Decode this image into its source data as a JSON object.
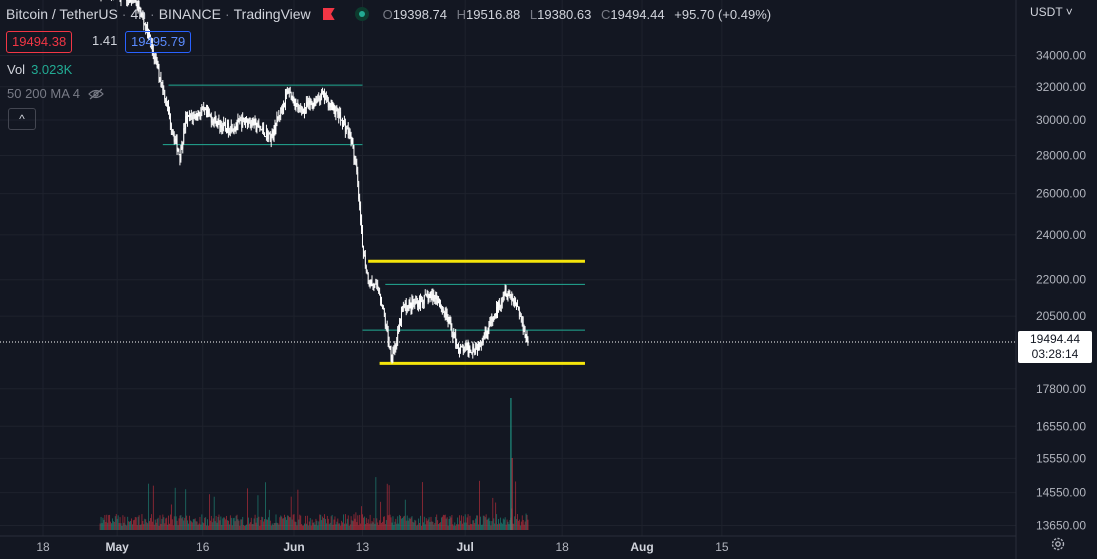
{
  "header": {
    "symbol": "Bitcoin / TetherUS",
    "interval": "4h",
    "exchange": "BINANCE",
    "source": "TradingView",
    "ohlc": {
      "o_label": "O",
      "o": "19398.74",
      "h_label": "H",
      "h": "19516.88",
      "l_label": "L",
      "l": "19380.63",
      "c_label": "C",
      "c": "19494.44",
      "change": "+95.70 (+0.49%)"
    },
    "bid": "19494.38",
    "spread": "1.41",
    "ask": "19495.79",
    "vol_label": "Vol",
    "vol_value": "3.023K",
    "ma_label": "50 200 MA 4",
    "collapse_symbol": "^"
  },
  "axis": {
    "currency": "USDT ˅",
    "last_price": "19494.44",
    "countdown": "03:28:14"
  },
  "colors": {
    "background": "#131722",
    "up": "#22ab94",
    "down": "#f23645",
    "candle": "#ffffff",
    "support_resistance": "#f5e50b",
    "range_lines": "#22ab94"
  },
  "chart_data": {
    "type": "candlestick",
    "y_scale": "log",
    "ylim": [
      13400,
      37000
    ],
    "y_ticks": [
      "34000.00",
      "32000.00",
      "30000.00",
      "28000.00",
      "26000.00",
      "24000.00",
      "22000.00",
      "20500.00",
      "17800.00",
      "16550.00",
      "15550.00",
      "14550.00",
      "13650.00"
    ],
    "x_ticks": [
      "18",
      "May",
      "16",
      "Jun",
      "13",
      "Jul",
      "18",
      "Aug",
      "15"
    ],
    "x_ticks_bold": [
      "May",
      "Jun",
      "Jul",
      "Aug"
    ],
    "price_path": [
      [
        "2022-04-28",
        38500
      ],
      [
        "2022-05-04",
        38000
      ],
      [
        "2022-05-06",
        36000
      ],
      [
        "2022-05-09",
        32000
      ],
      [
        "2022-05-11",
        29000
      ],
      [
        "2022-05-12",
        28000
      ],
      [
        "2022-05-13",
        30000
      ],
      [
        "2022-05-16",
        30500
      ],
      [
        "2022-05-20",
        29500
      ],
      [
        "2022-05-24",
        30000
      ],
      [
        "2022-05-28",
        29000
      ],
      [
        "2022-05-31",
        31800
      ],
      [
        "2022-06-02",
        30500
      ],
      [
        "2022-06-06",
        31500
      ],
      [
        "2022-06-09",
        30200
      ],
      [
        "2022-06-11",
        29000
      ],
      [
        "2022-06-12",
        27000
      ],
      [
        "2022-06-13",
        23500
      ],
      [
        "2022-06-14",
        22000
      ],
      [
        "2022-06-16",
        21500
      ],
      [
        "2022-06-18",
        19000
      ],
      [
        "2022-06-19",
        19500
      ],
      [
        "2022-06-20",
        20800
      ],
      [
        "2022-06-22",
        21000
      ],
      [
        "2022-06-24",
        21200
      ],
      [
        "2022-06-26",
        21300
      ],
      [
        "2022-06-28",
        20300
      ],
      [
        "2022-06-30",
        19200
      ],
      [
        "2022-07-03",
        19300
      ],
      [
        "2022-07-06",
        20400
      ],
      [
        "2022-07-08",
        21600
      ],
      [
        "2022-07-10",
        21000
      ],
      [
        "2022-07-12",
        19494.44
      ]
    ],
    "horizontal_lines": [
      {
        "color": "#22ab94",
        "price": 32100,
        "from": "2022-05-10",
        "to": "2022-06-13"
      },
      {
        "color": "#22ab94",
        "price": 28600,
        "from": "2022-05-09",
        "to": "2022-06-13"
      },
      {
        "color": "#f5e50b",
        "price": 22800,
        "from": "2022-06-14",
        "to": "2022-07-22"
      },
      {
        "color": "#22ab94",
        "price": 21800,
        "from": "2022-06-17",
        "to": "2022-07-22"
      },
      {
        "color": "#22ab94",
        "price": 19950,
        "from": "2022-06-13",
        "to": "2022-07-22"
      },
      {
        "color": "#f5e50b",
        "price": 18700,
        "from": "2022-06-16",
        "to": "2022-07-22"
      }
    ],
    "last_price": 19494.44,
    "volume_spike": [
      "2022-07-09",
      17500
    ]
  }
}
